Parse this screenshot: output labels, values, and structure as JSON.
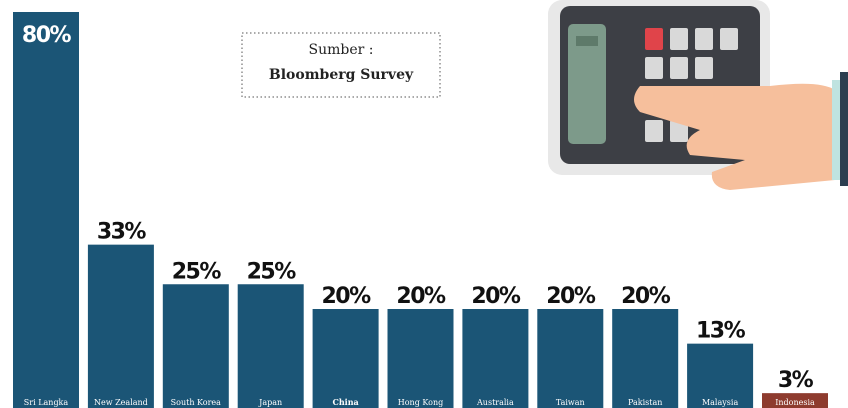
{
  "chart_data": {
    "type": "bar",
    "categories": [
      "Sri Langka",
      "New Zealand",
      "South Korea",
      "Japan",
      "China",
      "Hong Kong",
      "Australia",
      "Taiwan",
      "Pakistan",
      "Malaysia",
      "Indonesia"
    ],
    "values": [
      80,
      33,
      25,
      25,
      20,
      20,
      20,
      20,
      20,
      13,
      3
    ],
    "value_labels": [
      "80%",
      "33%",
      "25%",
      "25%",
      "20%",
      "20%",
      "20%",
      "20%",
      "20%",
      "13%",
      "3%"
    ],
    "colors": [
      "#1b5576",
      "#1b5576",
      "#1b5576",
      "#1b5576",
      "#1b5576",
      "#1b5576",
      "#1b5576",
      "#1b5576",
      "#1b5576",
      "#1b5576",
      "#8e3b2e"
    ],
    "ylim": [
      0,
      80
    ],
    "source_label": "Sumber :",
    "source": "Bloomberg Survey"
  }
}
